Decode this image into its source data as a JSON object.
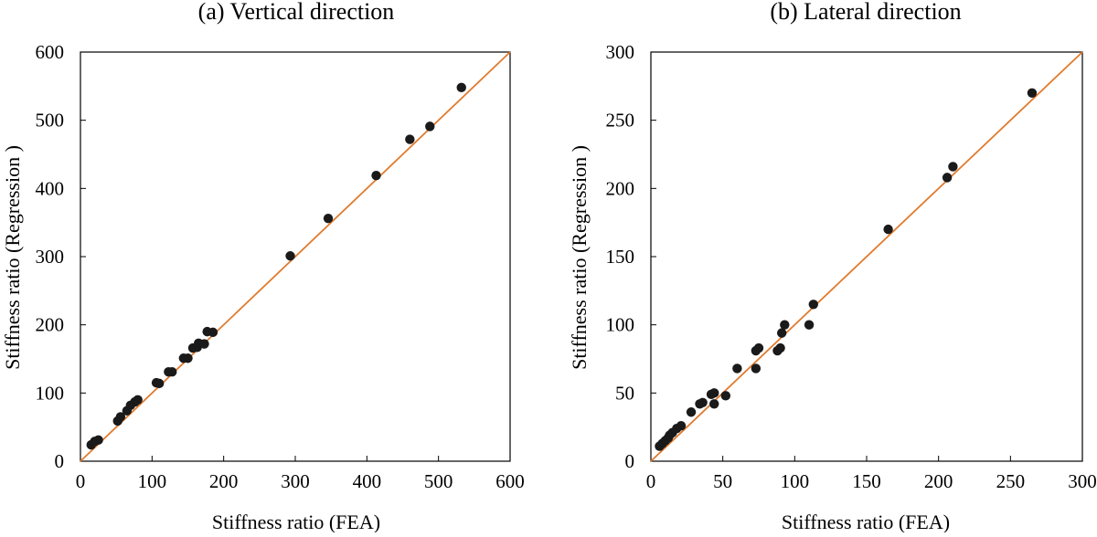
{
  "colors": {
    "point": "#1a1a1a",
    "reference_line": "#E07B2E",
    "axis": "#000000"
  },
  "chart_data": [
    {
      "type": "scatter",
      "title": "(a) Vertical direction",
      "xlabel": "Stiffness ratio (FEA)",
      "ylabel": "Stiffness ratio (Regression )",
      "xlim": [
        0,
        600
      ],
      "ylim": [
        0,
        600
      ],
      "xticks": [
        "0",
        "100",
        "200",
        "300",
        "400",
        "500",
        "600"
      ],
      "yticks": [
        "0",
        "100",
        "200",
        "300",
        "400",
        "500",
        "600"
      ],
      "reference_line": "y = x",
      "grid": false,
      "points": [
        {
          "x": 15,
          "y": 24
        },
        {
          "x": 20,
          "y": 29
        },
        {
          "x": 25,
          "y": 31
        },
        {
          "x": 52,
          "y": 59
        },
        {
          "x": 56,
          "y": 65
        },
        {
          "x": 65,
          "y": 74
        },
        {
          "x": 70,
          "y": 82
        },
        {
          "x": 76,
          "y": 87
        },
        {
          "x": 80,
          "y": 90
        },
        {
          "x": 106,
          "y": 115
        },
        {
          "x": 110,
          "y": 114
        },
        {
          "x": 123,
          "y": 131
        },
        {
          "x": 128,
          "y": 131
        },
        {
          "x": 144,
          "y": 151
        },
        {
          "x": 150,
          "y": 151
        },
        {
          "x": 157,
          "y": 166
        },
        {
          "x": 163,
          "y": 167
        },
        {
          "x": 165,
          "y": 173
        },
        {
          "x": 173,
          "y": 172
        },
        {
          "x": 177,
          "y": 190
        },
        {
          "x": 185,
          "y": 189
        },
        {
          "x": 293,
          "y": 301
        },
        {
          "x": 346,
          "y": 356
        },
        {
          "x": 413,
          "y": 419
        },
        {
          "x": 460,
          "y": 472
        },
        {
          "x": 488,
          "y": 491
        },
        {
          "x": 532,
          "y": 548
        }
      ]
    },
    {
      "type": "scatter",
      "title": "(b) Lateral direction",
      "xlabel": "Stiffness ratio (FEA)",
      "ylabel": "Stiffness ratio (Regression )",
      "xlim": [
        0,
        300
      ],
      "ylim": [
        0,
        300
      ],
      "xticks": [
        "0",
        "50",
        "100",
        "150",
        "200",
        "250",
        "300"
      ],
      "yticks": [
        "0",
        "50",
        "100",
        "150",
        "200",
        "250",
        "300"
      ],
      "reference_line": "y = x",
      "grid": false,
      "points": [
        {
          "x": 6,
          "y": 11
        },
        {
          "x": 8,
          "y": 13
        },
        {
          "x": 10,
          "y": 15
        },
        {
          "x": 12,
          "y": 17
        },
        {
          "x": 13,
          "y": 19
        },
        {
          "x": 15,
          "y": 21
        },
        {
          "x": 18,
          "y": 24
        },
        {
          "x": 21,
          "y": 26
        },
        {
          "x": 28,
          "y": 36
        },
        {
          "x": 34,
          "y": 42
        },
        {
          "x": 36,
          "y": 43
        },
        {
          "x": 42,
          "y": 49
        },
        {
          "x": 44,
          "y": 50
        },
        {
          "x": 44,
          "y": 42
        },
        {
          "x": 52,
          "y": 48
        },
        {
          "x": 60,
          "y": 68
        },
        {
          "x": 73,
          "y": 68
        },
        {
          "x": 73,
          "y": 81
        },
        {
          "x": 75,
          "y": 83
        },
        {
          "x": 88,
          "y": 81
        },
        {
          "x": 90,
          "y": 83
        },
        {
          "x": 91,
          "y": 94
        },
        {
          "x": 93,
          "y": 100
        },
        {
          "x": 110,
          "y": 100
        },
        {
          "x": 113,
          "y": 115
        },
        {
          "x": 165,
          "y": 170
        },
        {
          "x": 206,
          "y": 208
        },
        {
          "x": 210,
          "y": 216
        },
        {
          "x": 265,
          "y": 270
        }
      ]
    }
  ]
}
